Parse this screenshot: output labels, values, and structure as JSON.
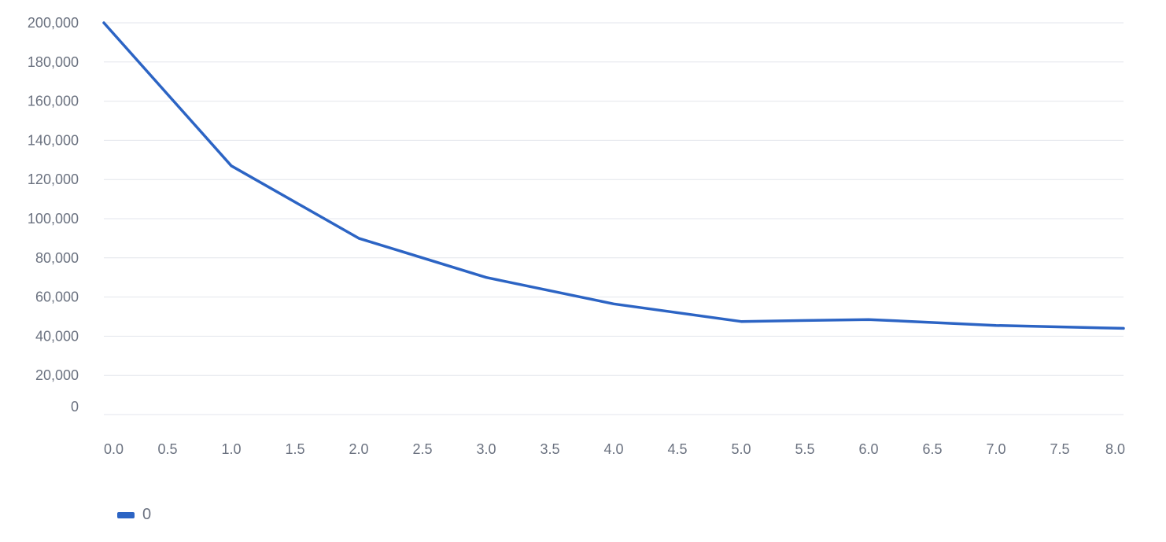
{
  "chart_data": {
    "type": "line",
    "x": [
      0,
      1,
      2,
      3,
      4,
      5,
      6,
      7,
      8
    ],
    "series": [
      {
        "name": "0",
        "color": "#2c64c4",
        "values": [
          200000,
          127000,
          90000,
          70000,
          56500,
          47500,
          48500,
          45500,
          44000
        ]
      }
    ],
    "xlim": [
      0,
      8
    ],
    "ylim": [
      0,
      200000
    ],
    "x_ticks": [
      "0.0",
      "0.5",
      "1.0",
      "1.5",
      "2.0",
      "2.5",
      "3.0",
      "3.5",
      "4.0",
      "4.5",
      "5.0",
      "5.5",
      "6.0",
      "6.5",
      "7.0",
      "7.5",
      "8.0"
    ],
    "y_ticks": [
      "0",
      "20,000",
      "40,000",
      "60,000",
      "80,000",
      "100,000",
      "120,000",
      "140,000",
      "160,000",
      "180,000",
      "200,000"
    ],
    "grid": "horizontal",
    "legend_position": "bottom-left"
  }
}
